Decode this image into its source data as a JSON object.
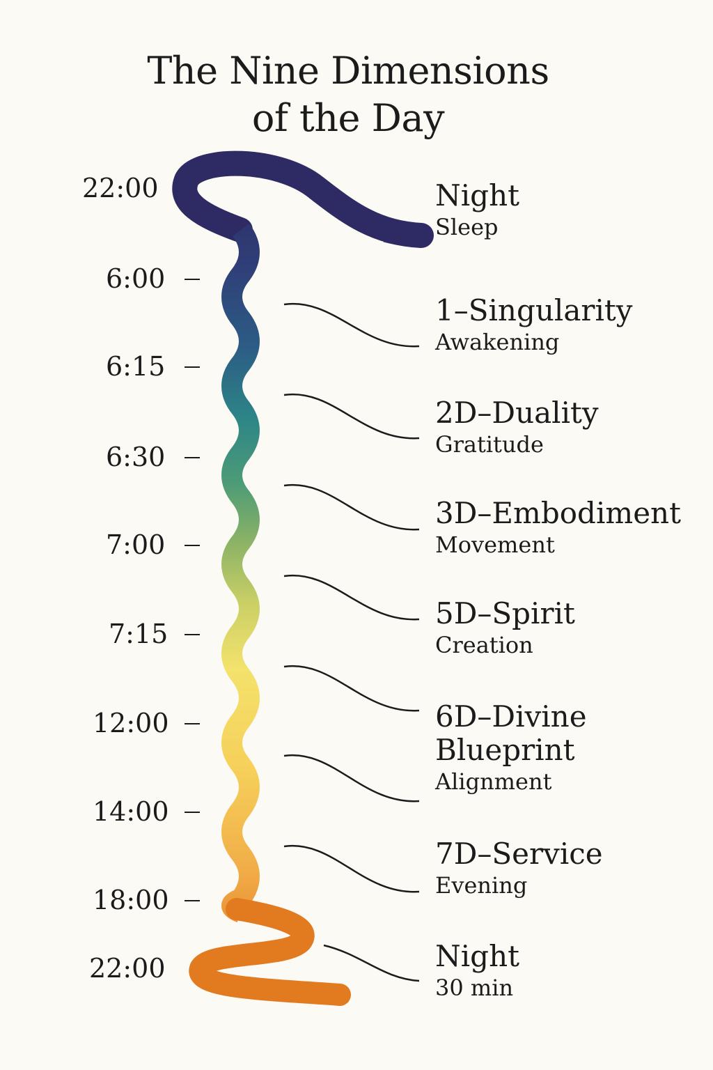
{
  "title_line1": "The Nine Dimensions",
  "title_line2": "of the Day",
  "times": [
    "22:00",
    "6:00",
    "6:15",
    "6:30",
    "7:00",
    "7:15",
    "12:00",
    "14:00",
    "18:00",
    "22:00"
  ],
  "dimensions": [
    {
      "name": "Night",
      "sub": "Sleep"
    },
    {
      "name": "1–Singularity",
      "sub": "Awakening"
    },
    {
      "name": "2D–Duality",
      "sub": "Gratitude"
    },
    {
      "name": "3D–Embodiment",
      "sub": "Movement"
    },
    {
      "name": "5D–Spirit",
      "sub": "Creation"
    },
    {
      "name": "6D–Divine Blueprint",
      "name_line1": "6D–Divine",
      "name_line2": "Blueprint",
      "sub": "Alignment"
    },
    {
      "name": "7D–Service",
      "sub": "Evening"
    },
    {
      "name": "Night",
      "sub": "30 min"
    }
  ],
  "colors": {
    "ribbon_gradient": [
      "#2e2a63",
      "#2f3f78",
      "#2c5e86",
      "#2d8587",
      "#4e9c76",
      "#8db366",
      "#c9cf66",
      "#f3e26c",
      "#f6d05a",
      "#f1ad48",
      "#ea8a2e",
      "#e27a20"
    ],
    "text": "#1b1b1b",
    "background": "#fbfaf4"
  }
}
